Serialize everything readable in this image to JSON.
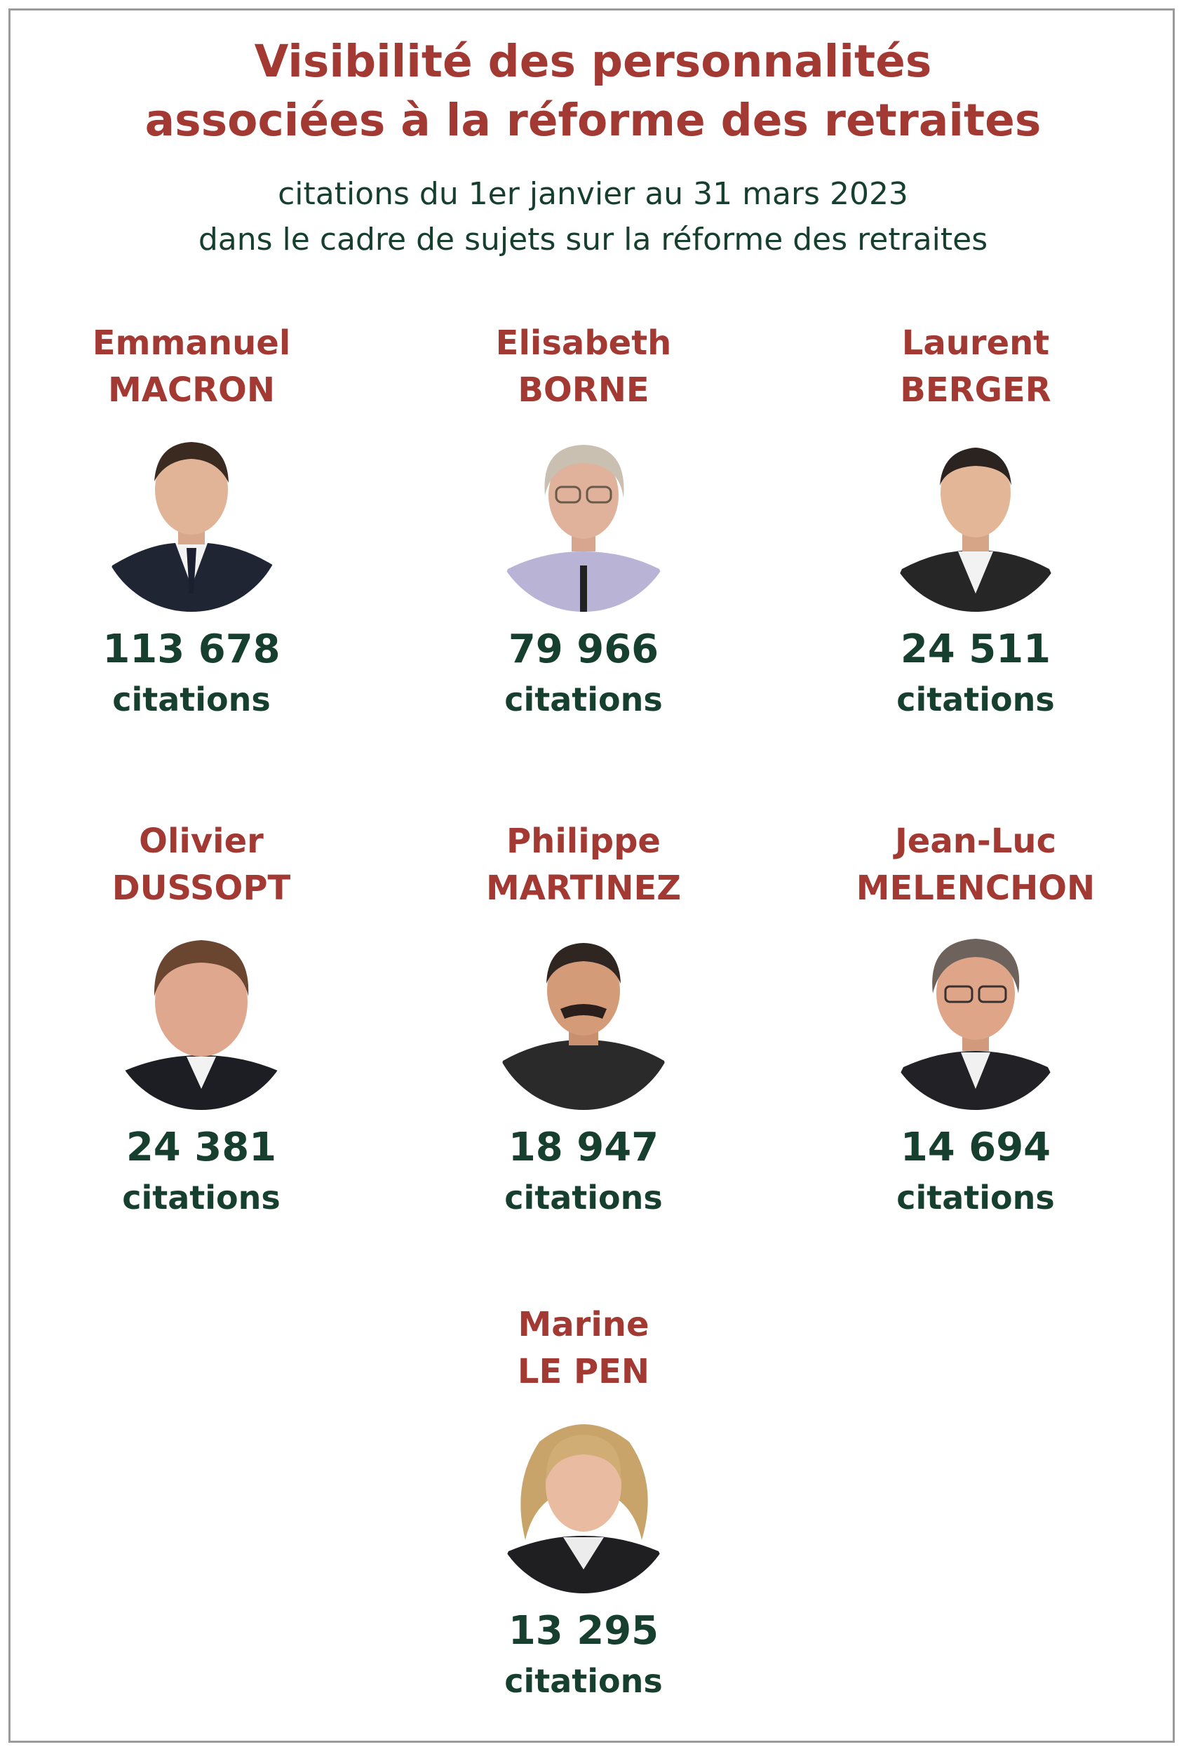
{
  "title": {
    "line1": "Visibilité des personnalités",
    "line2": "associées à la réforme des retraites"
  },
  "subtitle": {
    "line1": "citations du 1er janvier au 31 mars 2023",
    "line2": "dans le cadre de sujets sur la réforme des retraites"
  },
  "colors": {
    "accent": "#a23a33",
    "dark_green": "#173f2f",
    "border": "#9a9a9a"
  },
  "people": [
    {
      "first": "Emmanuel",
      "last": "MACRON",
      "count": "113 678",
      "unit": "citations",
      "icon": "portrait-macron"
    },
    {
      "first": "Elisabeth",
      "last": "BORNE",
      "count": "79 966",
      "unit": "citations",
      "icon": "portrait-borne"
    },
    {
      "first": "Laurent",
      "last": "BERGER",
      "count": "24 511",
      "unit": "citations",
      "icon": "portrait-berger"
    },
    {
      "first": "Olivier",
      "last": "DUSSOPT",
      "count": "24 381",
      "unit": "citations",
      "icon": "portrait-dussopt"
    },
    {
      "first": "Philippe",
      "last": "MARTINEZ",
      "count": "18 947",
      "unit": "citations",
      "icon": "portrait-martinez"
    },
    {
      "first": "Jean-Luc",
      "last": "MELENCHON",
      "count": "14 694",
      "unit": "citations",
      "icon": "portrait-melenchon"
    },
    {
      "first": "Marine",
      "last": "LE PEN",
      "count": "13 295",
      "unit": "citations",
      "icon": "portrait-lepen"
    }
  ]
}
